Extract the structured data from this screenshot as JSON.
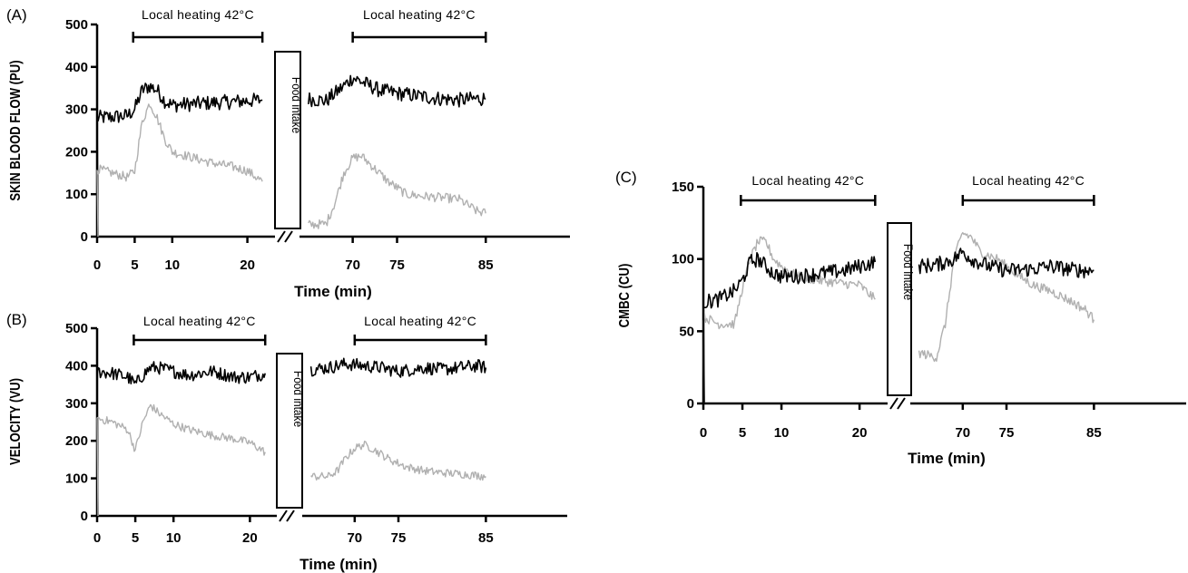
{
  "chart_data": [
    {
      "id": "A",
      "type": "line",
      "panel_label": "(A)",
      "ylabel": "SKIN BLOOD FLOW (PU)",
      "xlabel": "Time (min)",
      "ylim": [
        0,
        500
      ],
      "yticks": [
        "0",
        "100",
        "200",
        "300",
        "400",
        "500"
      ],
      "xticks": [
        "0",
        "5",
        "10",
        "20",
        "70",
        "75",
        "85"
      ],
      "heating_label": "Local heating 42°C",
      "heating_periods": [
        [
          5,
          22
        ],
        [
          70,
          85
        ]
      ],
      "food_label": "Food intake",
      "series": [
        {
          "color": "#000000",
          "points": [
            [
              0,
              280
            ],
            [
              2,
              282
            ],
            [
              4,
              285
            ],
            [
              5,
              300
            ],
            [
              6,
              345
            ],
            [
              7,
              355
            ],
            [
              8,
              345
            ],
            [
              9,
              320
            ],
            [
              10,
              310
            ],
            [
              12,
              312
            ],
            [
              15,
              315
            ],
            [
              18,
              318
            ],
            [
              20,
              320
            ],
            [
              22,
              322
            ],
            [
              65,
              325
            ],
            [
              67,
              320
            ],
            [
              69,
              355
            ],
            [
              70,
              375
            ],
            [
              71,
              365
            ],
            [
              73,
              345
            ],
            [
              75,
              338
            ],
            [
              78,
              330
            ],
            [
              80,
              325
            ],
            [
              82,
              322
            ],
            [
              84,
              325
            ],
            [
              85,
              325
            ]
          ]
        },
        {
          "color": "#b0b0b0",
          "points": [
            [
              0,
              160
            ],
            [
              2,
              150
            ],
            [
              4,
              140
            ],
            [
              5,
              155
            ],
            [
              6,
              270
            ],
            [
              7,
              315
            ],
            [
              8,
              280
            ],
            [
              9,
              230
            ],
            [
              10,
              200
            ],
            [
              12,
              190
            ],
            [
              15,
              175
            ],
            [
              18,
              165
            ],
            [
              20,
              155
            ],
            [
              22,
              130
            ],
            [
              65,
              28
            ],
            [
              67,
              30
            ],
            [
              68,
              80
            ],
            [
              69,
              150
            ],
            [
              70,
              185
            ],
            [
              71,
              190
            ],
            [
              72,
              170
            ],
            [
              74,
              130
            ],
            [
              76,
              100
            ],
            [
              78,
              95
            ],
            [
              80,
              92
            ],
            [
              82,
              88
            ],
            [
              84,
              60
            ],
            [
              85,
              55
            ]
          ]
        }
      ]
    },
    {
      "id": "B",
      "type": "line",
      "panel_label": "(B)",
      "ylabel": "VELOCITY (VU)",
      "xlabel": "Time (min)",
      "ylim": [
        0,
        500
      ],
      "yticks": [
        "0",
        "100",
        "200",
        "300",
        "400",
        "500"
      ],
      "xticks": [
        "0",
        "5",
        "10",
        "20",
        "70",
        "75",
        "85"
      ],
      "heating_label": "Local heating 42°C",
      "heating_periods": [
        [
          5,
          22
        ],
        [
          70,
          85
        ]
      ],
      "food_label": "Food intake",
      "series": [
        {
          "color": "#000000",
          "points": [
            [
              0,
              385
            ],
            [
              2,
              380
            ],
            [
              4,
              370
            ],
            [
              5,
              350
            ],
            [
              6,
              375
            ],
            [
              7,
              395
            ],
            [
              8,
              395
            ],
            [
              10,
              385
            ],
            [
              12,
              375
            ],
            [
              15,
              385
            ],
            [
              18,
              370
            ],
            [
              20,
              370
            ],
            [
              22,
              380
            ],
            [
              65,
              390
            ],
            [
              67,
              395
            ],
            [
              69,
              405
            ],
            [
              71,
              400
            ],
            [
              73,
              395
            ],
            [
              75,
              385
            ],
            [
              78,
              395
            ],
            [
              80,
              390
            ],
            [
              82,
              395
            ],
            [
              84,
              400
            ],
            [
              85,
              395
            ]
          ]
        },
        {
          "color": "#b0b0b0",
          "points": [
            [
              0,
              260
            ],
            [
              2,
              250
            ],
            [
              4,
              230
            ],
            [
              5,
              175
            ],
            [
              6,
              250
            ],
            [
              7,
              295
            ],
            [
              8,
              275
            ],
            [
              10,
              245
            ],
            [
              12,
              230
            ],
            [
              15,
              215
            ],
            [
              18,
              205
            ],
            [
              20,
              195
            ],
            [
              22,
              170
            ],
            [
              65,
              105
            ],
            [
              67,
              105
            ],
            [
              68,
              120
            ],
            [
              69,
              155
            ],
            [
              70,
              180
            ],
            [
              71,
              190
            ],
            [
              72,
              180
            ],
            [
              74,
              150
            ],
            [
              76,
              130
            ],
            [
              78,
              120
            ],
            [
              80,
              115
            ],
            [
              82,
              112
            ],
            [
              84,
              108
            ],
            [
              85,
              105
            ]
          ]
        }
      ]
    },
    {
      "id": "C",
      "type": "line",
      "panel_label": "(C)",
      "ylabel": "CMBC (CU)",
      "xlabel": "Time (min)",
      "ylim": [
        0,
        150
      ],
      "yticks": [
        "0",
        "50",
        "100",
        "150"
      ],
      "xticks": [
        "0",
        "5",
        "10",
        "20",
        "70",
        "75",
        "85"
      ],
      "heating_label": "Local heating 42°C",
      "heating_periods": [
        [
          5,
          22
        ],
        [
          70,
          85
        ]
      ],
      "food_label": "Food intake",
      "series": [
        {
          "color": "#b0b0b0",
          "points": [
            [
              0,
              60
            ],
            [
              2,
              55
            ],
            [
              4,
              55
            ],
            [
              5,
              80
            ],
            [
              6,
              100
            ],
            [
              7,
              112
            ],
            [
              8,
              112
            ],
            [
              9,
              100
            ],
            [
              10,
              95
            ],
            [
              12,
              88
            ],
            [
              15,
              85
            ],
            [
              18,
              83
            ],
            [
              20,
              82
            ],
            [
              22,
              72
            ],
            [
              65,
              35
            ],
            [
              67,
              32
            ],
            [
              68,
              55
            ],
            [
              69,
              100
            ],
            [
              70,
              118
            ],
            [
              71,
              115
            ],
            [
              72,
              105
            ],
            [
              74,
              100
            ],
            [
              76,
              90
            ],
            [
              78,
              82
            ],
            [
              80,
              78
            ],
            [
              82,
              72
            ],
            [
              84,
              65
            ],
            [
              85,
              58
            ]
          ]
        },
        {
          "color": "#000000",
          "points": [
            [
              0,
              70
            ],
            [
              2,
              72
            ],
            [
              4,
              78
            ],
            [
              5,
              85
            ],
            [
              6,
              98
            ],
            [
              7,
              100
            ],
            [
              8,
              95
            ],
            [
              9,
              90
            ],
            [
              10,
              88
            ],
            [
              12,
              88
            ],
            [
              15,
              90
            ],
            [
              18,
              92
            ],
            [
              20,
              95
            ],
            [
              22,
              98
            ],
            [
              65,
              95
            ],
            [
              67,
              96
            ],
            [
              69,
              100
            ],
            [
              70,
              105
            ],
            [
              71,
              100
            ],
            [
              73,
              95
            ],
            [
              75,
              92
            ],
            [
              78,
              93
            ],
            [
              80,
              95
            ],
            [
              82,
              93
            ],
            [
              84,
              92
            ],
            [
              85,
              92
            ]
          ]
        }
      ]
    }
  ]
}
